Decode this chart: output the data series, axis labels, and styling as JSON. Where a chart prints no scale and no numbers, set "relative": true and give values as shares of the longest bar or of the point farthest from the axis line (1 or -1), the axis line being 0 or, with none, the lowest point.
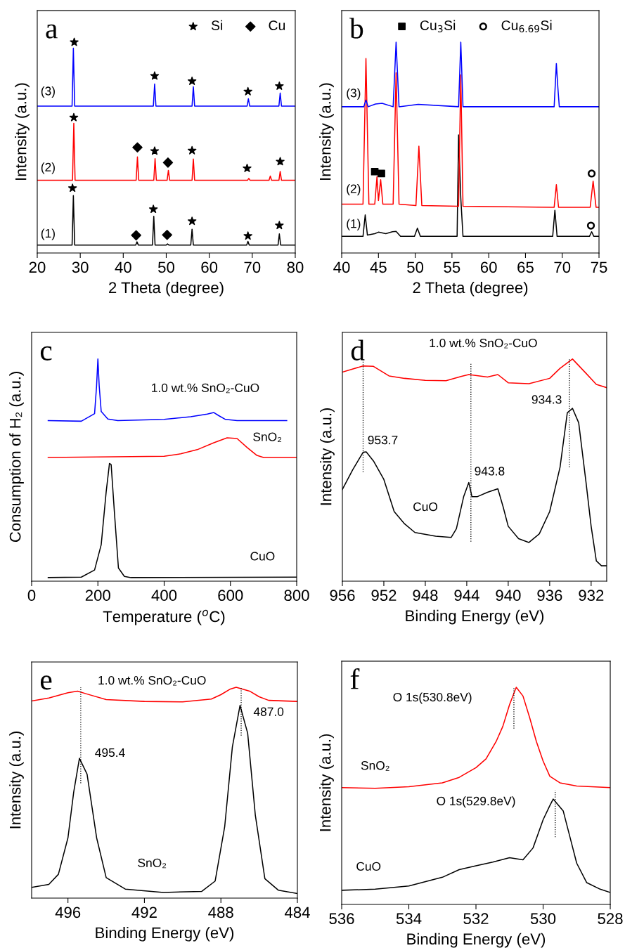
{
  "chart_data": [
    {
      "type": "line",
      "relative": true,
      "xlabel": "2 Theta (degree)",
      "ylabel": "Intensity (a.u.)",
      "xlim": [
        20,
        80
      ],
      "xticks": [
        20,
        30,
        40,
        50,
        60,
        70,
        80
      ],
      "legend": "top right",
      "grid": false,
      "annotations": [
        "a",
        "(1)",
        "(2)",
        "(3)"
      ],
      "series": [
        {
          "color": "#000000",
          "x": [
            20,
            28.1,
            28.4,
            28.7,
            42.9,
            43.2,
            43.5,
            46.8,
            47.1,
            47.4,
            50.0,
            50.3,
            50.6,
            55.7,
            56.0,
            56.3,
            68.7,
            69.0,
            69.3,
            76.0,
            76.3,
            76.6,
            80
          ],
          "values": [
            0.038,
            0.038,
            0.273,
            0.038,
            0.038,
            0.053,
            0.038,
            0.038,
            0.174,
            0.038,
            0.038,
            0.043,
            0.038,
            0.038,
            0.113,
            0.038,
            0.038,
            0.055,
            0.038,
            0.038,
            0.091,
            0.038,
            0.038
          ]
        },
        {
          "color": "#ff0000",
          "x": [
            20,
            28.2,
            28.5,
            28.8,
            43.0,
            43.3,
            43.6,
            47.1,
            47.4,
            47.7,
            50.2,
            50.5,
            50.8,
            56.0,
            56.3,
            56.6,
            68.9,
            69.2,
            69.5,
            73.9,
            74.2,
            74.5,
            76.2,
            76.5,
            76.8,
            80
          ],
          "values": [
            0.345,
            0.345,
            0.615,
            0.345,
            0.345,
            0.456,
            0.345,
            0.345,
            0.448,
            0.345,
            0.345,
            0.392,
            0.345,
            0.345,
            0.446,
            0.345,
            0.345,
            0.354,
            0.345,
            0.345,
            0.365,
            0.345,
            0.345,
            0.387,
            0.345,
            0.345
          ]
        },
        {
          "color": "#0000ff",
          "x": [
            20,
            28.1,
            28.4,
            28.7,
            47.0,
            47.3,
            47.6,
            56.0,
            56.3,
            56.6,
            68.8,
            69.1,
            69.4,
            76.2,
            76.5,
            76.8,
            80
          ],
          "values": [
            0.697,
            0.697,
            0.972,
            0.697,
            0.697,
            0.802,
            0.697,
            0.697,
            0.789,
            0.697,
            0.697,
            0.732,
            0.697,
            0.697,
            0.759,
            0.697,
            0.697
          ]
        },
        {
          "type": "scatter",
          "name": "Si",
          "marker": "star",
          "color": "#000000",
          "x": [
            28.2,
            47.0,
            56.0,
            69.0,
            76.3,
            28.5,
            47.3,
            56.0,
            68.8,
            76.5,
            28.6,
            47.3,
            56.0,
            69.0,
            76.3
          ],
          "values": [
            0.308,
            0.208,
            0.151,
            0.081,
            0.131,
            0.643,
            0.484,
            0.486,
            0.402,
            0.434,
            1.0,
            0.84,
            0.815,
            0.766,
            0.792
          ]
        },
        {
          "type": "scatter",
          "name": "Cu",
          "marker": "diamond",
          "color": "#000000",
          "x": [
            43.0,
            50.2,
            43.3,
            50.4
          ],
          "values": [
            0.084,
            0.086,
            0.501,
            0.429
          ]
        }
      ]
    },
    {
      "type": "line",
      "relative": true,
      "xlabel": "2 Theta (degree)",
      "ylabel": "Intensity (a.u.)",
      "xlim": [
        40,
        75
      ],
      "xticks": [
        40,
        45,
        50,
        55,
        60,
        65,
        70,
        75
      ],
      "legend": "top",
      "grid": false,
      "annotations": [
        "b",
        "(1)",
        "(2)",
        "(3)"
      ],
      "series": [
        {
          "color": "#000000",
          "x": [
            40,
            42.9,
            43.2,
            43.5,
            44.5,
            45.0,
            46.0,
            46.9,
            47.4,
            48,
            49.9,
            50.3,
            50.7,
            55.7,
            55.9,
            56.2,
            56.5,
            68.7,
            69.0,
            69.3,
            73.7,
            74.0,
            74.3,
            75
          ],
          "values": [
            0.079,
            0.079,
            0.181,
            0.085,
            0.092,
            0.099,
            0.092,
            0.101,
            0.103,
            0.079,
            0.079,
            0.118,
            0.079,
            0.079,
            0.56,
            0.261,
            0.079,
            0.079,
            0.203,
            0.079,
            0.079,
            0.101,
            0.079,
            0.079
          ]
        },
        {
          "color": "#ff0000",
          "x": [
            40,
            42.9,
            43.3,
            43.7,
            44.5,
            44.8,
            45.0,
            45.3,
            45.6,
            47.0,
            47.4,
            47.8,
            50.1,
            50.5,
            50.9,
            55.9,
            56.2,
            56.5,
            68.9,
            69.2,
            69.5,
            73.8,
            74.2,
            74.6,
            75
          ],
          "values": [
            0.232,
            0.232,
            0.923,
            0.232,
            0.232,
            0.362,
            0.249,
            0.348,
            0.232,
            0.232,
            0.855,
            0.232,
            0.225,
            0.507,
            0.225,
            0.222,
            0.845,
            0.222,
            0.217,
            0.324,
            0.217,
            0.217,
            0.341,
            0.217,
            0.217
          ]
        },
        {
          "color": "#0000ff",
          "x": [
            40,
            43.0,
            43.3,
            43.6,
            44.6,
            45.5,
            47.0,
            47.4,
            47.8,
            50.4,
            55.9,
            56.2,
            56.5,
            68.9,
            69.2,
            69.4,
            69.6,
            75
          ],
          "values": [
            0.694,
            0.694,
            0.725,
            0.694,
            0.707,
            0.71,
            0.694,
            1.0,
            0.694,
            0.705,
            0.694,
            1.0,
            0.694,
            0.694,
            0.899,
            0.787,
            0.694,
            0.694
          ]
        },
        {
          "type": "scatter",
          "name": "Cu$_{3}$Si",
          "marker": "square",
          "color": "#000000",
          "x": [
            44.5,
            45.4
          ],
          "values": [
            0.386,
            0.377
          ]
        },
        {
          "type": "scatter",
          "name": "Cu$_{6.69}$Si",
          "marker": "circle",
          "color": "#000000",
          "x": [
            74.0,
            73.9
          ],
          "values": [
            0.377,
            0.13
          ]
        }
      ]
    },
    {
      "type": "line",
      "relative": true,
      "xlabel": "Temperature ($^{o}$C)",
      "ylabel": "Consumption of H₂ (a.u.)",
      "xlim": [
        0,
        800
      ],
      "xticks": [
        0,
        200,
        400,
        600,
        800
      ],
      "grid": false,
      "annotations": [
        "c",
        "1.0 wt.% SnO₂-CuO",
        "SnO₂",
        "CuO"
      ],
      "series": [
        {
          "color": "#0000ff",
          "x": [
            50,
            150,
            190,
            196,
            200,
            204,
            210,
            230,
            260,
            400,
            480,
            530,
            550,
            565,
            585,
            620,
            770
          ],
          "values": [
            0.723,
            0.72,
            0.754,
            0.878,
            1.0,
            0.878,
            0.764,
            0.73,
            0.723,
            0.728,
            0.74,
            0.752,
            0.759,
            0.745,
            0.728,
            0.723,
            0.723
          ]
        },
        {
          "color": "#ff0000",
          "x": [
            50,
            400,
            450,
            500,
            550,
            590,
            620,
            650,
            680,
            700,
            800
          ],
          "values": [
            0.557,
            0.562,
            0.573,
            0.592,
            0.623,
            0.645,
            0.642,
            0.602,
            0.566,
            0.557,
            0.557
          ]
        },
        {
          "color": "#000000",
          "x": [
            50,
            150,
            190,
            210,
            225,
            235,
            240,
            250,
            262,
            280,
            300,
            800
          ],
          "values": [
            0.016,
            0.018,
            0.05,
            0.164,
            0.402,
            0.53,
            0.525,
            0.307,
            0.059,
            0.021,
            0.016,
            0.018
          ]
        }
      ]
    },
    {
      "type": "line",
      "relative": true,
      "xlabel": "Binding Energy (eV)",
      "ylabel": "Intensity (a.u.)",
      "xlim": [
        956,
        930.5
      ],
      "xticks": [
        956,
        952,
        948,
        944,
        940,
        936,
        932
      ],
      "grid": false,
      "annotations": [
        "d",
        "1.0 wt.% SnO₂-CuO",
        "953.7",
        "943.8",
        "934.3",
        "CuO"
      ],
      "series": [
        {
          "color": "#ff0000",
          "x": [
            956,
            954,
            953,
            951.5,
            950,
            948,
            946,
            944.5,
            943.8,
            942,
            941,
            940,
            938,
            936,
            935,
            933.8,
            932.5,
            931.5,
            930.5
          ],
          "values": [
            0.941,
            0.969,
            0.967,
            0.924,
            0.913,
            0.904,
            0.902,
            0.922,
            0.93,
            0.919,
            0.93,
            0.893,
            0.889,
            0.913,
            0.958,
            1.0,
            0.936,
            0.886,
            0.871
          ]
        },
        {
          "color": "#000000",
          "x": [
            956,
            955,
            954,
            953.7,
            953,
            952,
            951,
            950,
            949,
            947,
            945.5,
            945,
            944.3,
            943.8,
            943.5,
            943,
            942,
            941,
            940.5,
            940,
            939,
            938,
            937,
            936,
            935,
            934.3,
            933.8,
            933.2,
            932.5,
            932,
            931.5,
            931,
            930.5
          ],
          "values": [
            0.413,
            0.502,
            0.58,
            0.582,
            0.541,
            0.458,
            0.313,
            0.258,
            0.219,
            0.202,
            0.197,
            0.236,
            0.38,
            0.444,
            0.38,
            0.38,
            0.4,
            0.416,
            0.336,
            0.247,
            0.191,
            0.174,
            0.213,
            0.313,
            0.513,
            0.758,
            0.778,
            0.713,
            0.447,
            0.247,
            0.091,
            0.069,
            0.069
          ]
        },
        {
          "color": "#000000",
          "line_style": "dotted",
          "x": [
            954.0,
            954.0
          ],
          "values": [
            0.491,
            1.0
          ]
        },
        {
          "color": "#000000",
          "line_style": "dotted",
          "x": [
            943.6,
            943.6
          ],
          "values": [
            0.178,
            0.98
          ]
        },
        {
          "color": "#000000",
          "line_style": "dotted",
          "x": [
            934.1,
            934.1
          ],
          "values": [
            0.513,
            1.0
          ]
        }
      ]
    },
    {
      "type": "line",
      "relative": true,
      "xlabel": "Binding Energy (eV)",
      "ylabel": "Intensity (a.u.)",
      "xlim": [
        497.9,
        484
      ],
      "xticks": [
        496,
        492,
        488,
        484
      ],
      "grid": false,
      "annotations": [
        "e",
        "1.0 wt.% SnO₂-CuO",
        "495.4",
        "487.0",
        "SnO₂"
      ],
      "series": [
        {
          "color": "#ff0000",
          "x": [
            497.9,
            497,
            496,
            495.5,
            495,
            494,
            492,
            490,
            488.5,
            488,
            487.5,
            487.2,
            486.5,
            486,
            485.5,
            484
          ],
          "values": [
            0.935,
            0.949,
            0.974,
            0.982,
            0.968,
            0.942,
            0.933,
            0.931,
            0.944,
            0.965,
            0.992,
            1.0,
            0.982,
            0.955,
            0.938,
            0.933
          ]
        },
        {
          "color": "#000000",
          "x": [
            497.9,
            497,
            496.5,
            496,
            495.7,
            495.4,
            495,
            494.5,
            494,
            493,
            491,
            489,
            488.3,
            487.8,
            487.4,
            487.0,
            486.6,
            486.2,
            485.7,
            485,
            484
          ],
          "values": [
            0.051,
            0.065,
            0.113,
            0.286,
            0.502,
            0.663,
            0.588,
            0.286,
            0.097,
            0.043,
            0.027,
            0.032,
            0.081,
            0.34,
            0.717,
            0.914,
            0.782,
            0.394,
            0.092,
            0.038,
            0.022
          ]
        },
        {
          "color": "#000000",
          "line_style": "dotted",
          "x": [
            495.33,
            495.33
          ],
          "values": [
            0.545,
            1.0
          ]
        },
        {
          "color": "#000000",
          "line_style": "dotted",
          "x": [
            486.94,
            486.94
          ],
          "values": [
            0.771,
            1.0
          ]
        }
      ]
    },
    {
      "type": "line",
      "relative": true,
      "xlabel": "Binding Energy (eV)",
      "ylabel": "Intensity (a.u.)",
      "xlim": [
        536,
        528
      ],
      "xticks": [
        536,
        534,
        532,
        530,
        528
      ],
      "grid": false,
      "annotations": [
        "f",
        "O 1s(530.8eV)",
        "O 1s(529.8eV)",
        "SnO₂",
        "CuO"
      ],
      "series": [
        {
          "color": "#ff0000",
          "x": [
            536,
            535,
            534,
            533,
            532.5,
            532,
            531.7,
            531.4,
            531.2,
            531,
            530.8,
            530.6,
            530.4,
            530.2,
            530,
            529.8,
            529.5,
            529,
            528
          ],
          "values": [
            0.538,
            0.535,
            0.542,
            0.56,
            0.585,
            0.63,
            0.67,
            0.75,
            0.82,
            0.92,
            1.0,
            0.96,
            0.86,
            0.75,
            0.66,
            0.59,
            0.56,
            0.545,
            0.538
          ]
        },
        {
          "color": "#000000",
          "x": [
            536,
            535,
            534,
            533,
            532.5,
            532,
            531.5,
            531,
            530.6,
            530.3,
            530,
            529.8,
            529.7,
            529.4,
            529.2,
            529,
            528.7,
            528.3,
            528
          ],
          "values": [
            0.065,
            0.07,
            0.085,
            0.125,
            0.16,
            0.178,
            0.195,
            0.215,
            0.205,
            0.26,
            0.39,
            0.455,
            0.485,
            0.43,
            0.31,
            0.19,
            0.1,
            0.07,
            0.055
          ]
        },
        {
          "color": "#000000",
          "line_style": "dotted",
          "x": [
            530.87,
            530.87
          ],
          "values": [
            0.81,
            1.0
          ]
        },
        {
          "color": "#000000",
          "line_style": "dotted",
          "x": [
            529.64,
            529.64
          ],
          "values": [
            0.31,
            0.525
          ]
        }
      ]
    }
  ]
}
